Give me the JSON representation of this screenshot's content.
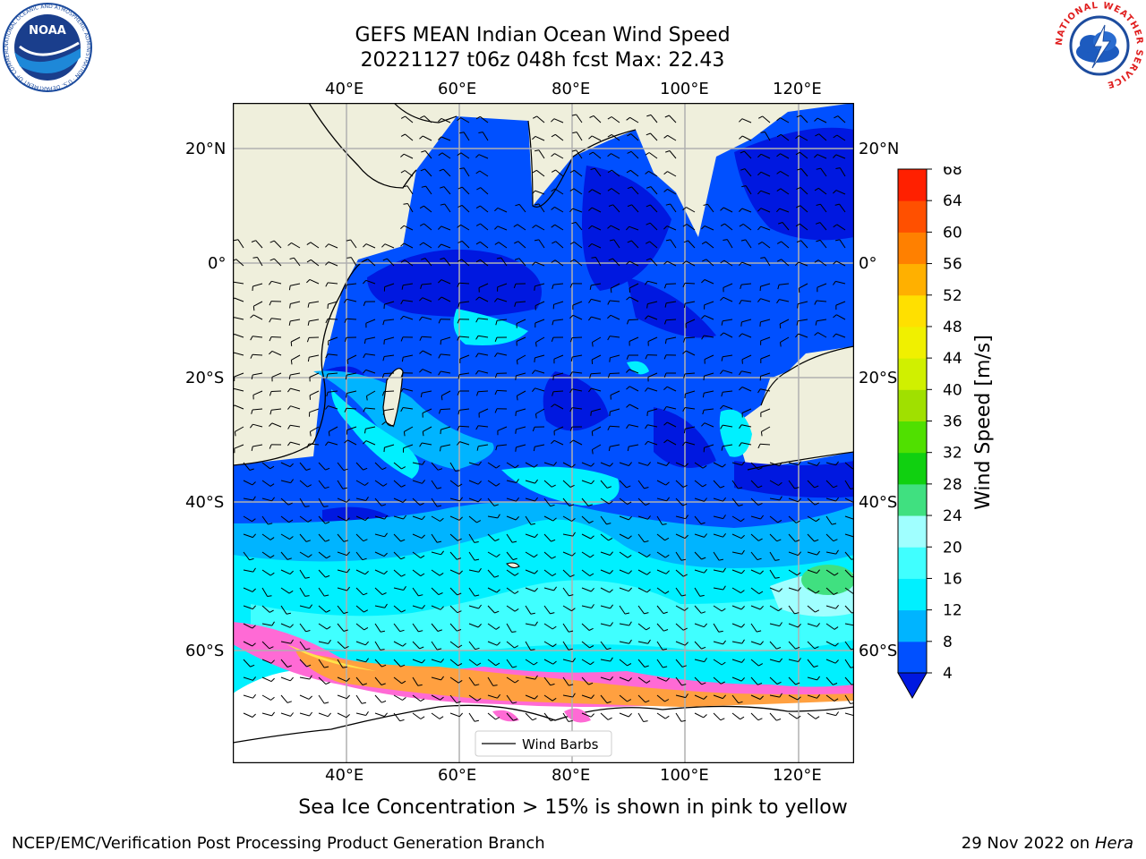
{
  "title": {
    "line1": "GEFS MEAN Indian Ocean Wind Speed",
    "line2": "20221127 t06z 048h fcst   Max: 22.43"
  },
  "map": {
    "lon_labels": [
      "40°E",
      "60°E",
      "80°E",
      "100°E",
      "120°E"
    ],
    "lat_labels": [
      "20°N",
      "0°",
      "20°S",
      "40°S",
      "60°S"
    ],
    "legend_label": "Wind Barbs"
  },
  "colorbar": {
    "label": "Wind Speed [m/s]",
    "ticks": [
      "4",
      "8",
      "12",
      "16",
      "20",
      "24",
      "28",
      "32",
      "36",
      "40",
      "44",
      "48",
      "52",
      "56",
      "60",
      "64",
      "68"
    ],
    "colors": [
      "#0050ff",
      "#00b4ff",
      "#00f0ff",
      "#40ffff",
      "#a0ffff",
      "#40e080",
      "#10d010",
      "#50e000",
      "#a0e000",
      "#d0f000",
      "#f0f000",
      "#ffe000",
      "#ffb000",
      "#ff8000",
      "#ff5000",
      "#ff2000",
      "#ff0000"
    ],
    "underflow_color": "#0018e0"
  },
  "caption": "Sea Ice Concentration > 15% is shown in pink to yellow",
  "footer": {
    "left": "NCEP/EMC/Verification Post Processing Product Generation Branch",
    "right_date": "29 Nov 2022 on",
    "right_host": "Hera"
  },
  "logos": {
    "noaa": "NOAA",
    "noaa_ring": "NATIONAL OCEANIC AND ATMOSPHERIC ADMINISTRATION · U.S. DEPARTMENT OF COMMERCE",
    "nws_ring": "NATIONAL WEATHER SERVICE"
  }
}
